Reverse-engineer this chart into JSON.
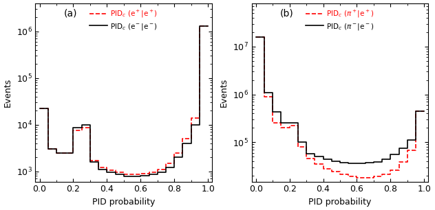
{
  "panel_a": {
    "label": "(a)",
    "xlabel": "PID probability",
    "ylabel": "Events",
    "ylim": [
      600,
      4000000.0
    ],
    "xlim": [
      -0.025,
      1.025
    ],
    "legend_red": "PID$_c$ (e$^+$|e$^+$)",
    "legend_black": "PID$_c$ (e$^-$|e$^-$)",
    "bin_edges": [
      0.0,
      0.05,
      0.1,
      0.15,
      0.2,
      0.25,
      0.3,
      0.35,
      0.4,
      0.45,
      0.5,
      0.55,
      0.6,
      0.65,
      0.7,
      0.75,
      0.8,
      0.85,
      0.9,
      0.95,
      1.0
    ],
    "red_vals": [
      22000,
      3000,
      2500,
      2500,
      7500,
      8500,
      1700,
      1200,
      1050,
      950,
      870,
      870,
      900,
      950,
      1100,
      1500,
      2500,
      5000,
      14000,
      1300000
    ],
    "black_vals": [
      22000,
      3000,
      2500,
      2500,
      8500,
      10000,
      1600,
      1100,
      950,
      850,
      780,
      780,
      800,
      850,
      950,
      1200,
      2000,
      4000,
      10000,
      1300000
    ]
  },
  "panel_b": {
    "label": "(b)",
    "xlabel": "PID probability",
    "ylabel": "Events",
    "ylim": [
      15000,
      80000000.0
    ],
    "xlim": [
      -0.025,
      1.025
    ],
    "legend_red": "PID$_c$ ($\\pi^+$|e$^+$)",
    "legend_black": "PID$_c$ ($\\pi^-$|e$^-$)",
    "bin_edges": [
      0.0,
      0.05,
      0.1,
      0.15,
      0.2,
      0.25,
      0.3,
      0.35,
      0.4,
      0.45,
      0.5,
      0.55,
      0.6,
      0.65,
      0.7,
      0.75,
      0.8,
      0.85,
      0.9,
      0.95,
      1.0
    ],
    "red_vals": [
      16000000,
      900000,
      250000,
      200000,
      220000,
      80000,
      45000,
      35000,
      28000,
      24000,
      21000,
      19000,
      18000,
      18000,
      19000,
      21000,
      26000,
      38000,
      68000,
      450000
    ],
    "black_vals": [
      16000000,
      1100000,
      430000,
      250000,
      250000,
      100000,
      58000,
      50000,
      44000,
      40000,
      37000,
      36000,
      36000,
      37000,
      39000,
      44000,
      56000,
      75000,
      110000,
      450000
    ]
  },
  "red_color": "#ff0000",
  "black_color": "#000000",
  "bg_color": "#ffffff"
}
